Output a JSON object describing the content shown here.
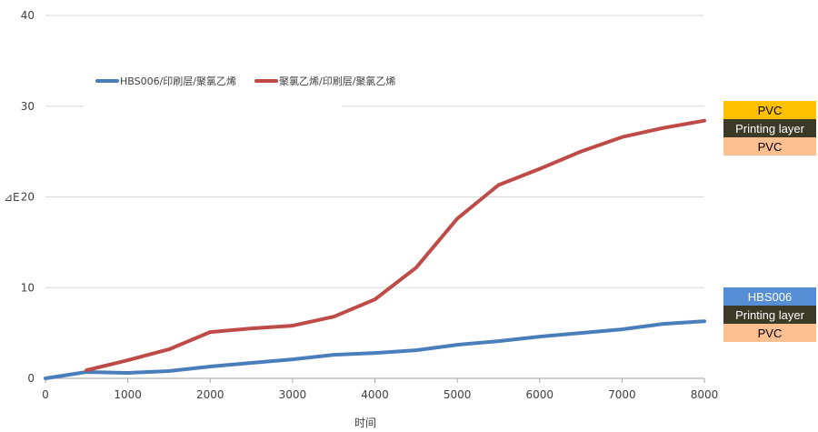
{
  "chart_data": {
    "type": "line",
    "xlabel": "时间",
    "ylabel": "⊿E",
    "xlim": [
      0,
      8000
    ],
    "ylim": [
      0,
      40
    ],
    "xticks": [
      0,
      1000,
      2000,
      3000,
      4000,
      5000,
      6000,
      7000,
      8000
    ],
    "yticks": [
      0,
      10,
      20,
      30,
      40
    ],
    "grid": "horizontal",
    "legend_position": "top-left",
    "series": [
      {
        "name": "HBS006/印刷层/聚氯乙烯",
        "color": "#4a7ebb",
        "x": [
          0,
          500,
          1000,
          1500,
          2000,
          2500,
          3000,
          3500,
          4000,
          4500,
          5000,
          5500,
          6000,
          6500,
          7000,
          7500,
          8000
        ],
        "y": [
          0,
          0.7,
          0.6,
          0.8,
          1.3,
          1.7,
          2.1,
          2.6,
          2.8,
          3.1,
          3.7,
          4.1,
          4.6,
          5.0,
          5.4,
          6.0,
          6.3
        ]
      },
      {
        "name": "聚氯乙烯/印刷层/聚氯乙烯",
        "color": "#be4b48",
        "x": [
          500,
          1000,
          1500,
          2000,
          2500,
          3000,
          3500,
          4000,
          4500,
          5000,
          5500,
          6000,
          6500,
          7000,
          7500,
          8000
        ],
        "y": [
          0.9,
          2.0,
          3.2,
          5.1,
          5.5,
          5.8,
          6.8,
          8.7,
          12.2,
          17.6,
          21.3,
          23.1,
          25.0,
          26.6,
          27.6,
          28.4
        ]
      }
    ]
  },
  "layer_stacks": [
    {
      "layers": [
        {
          "label": "PVC",
          "bg": "#ffc000",
          "fg": "#000000"
        },
        {
          "label": "Printing layer",
          "bg": "#3a3a26",
          "fg": "#ffffff"
        },
        {
          "label": "PVC",
          "bg": "#fbbf90",
          "fg": "#000000"
        }
      ]
    },
    {
      "layers": [
        {
          "label": "HBS006",
          "bg": "#558ed5",
          "fg": "#ffffff"
        },
        {
          "label": "Printing layer",
          "bg": "#3a3a26",
          "fg": "#ffffff"
        },
        {
          "label": "PVC",
          "bg": "#fbbf90",
          "fg": "#000000"
        }
      ]
    }
  ]
}
